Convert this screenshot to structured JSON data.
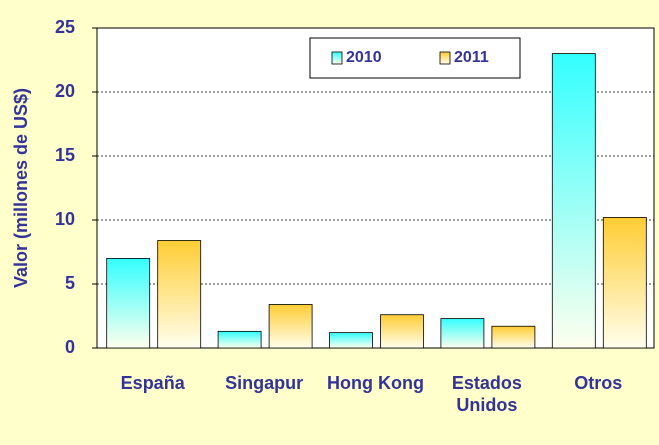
{
  "chart_data": {
    "type": "bar",
    "y_label": "Valor (millones de US$)",
    "categories": [
      "España",
      "Singapur",
      "Hong Kong",
      "Estados Unidos",
      "Otros"
    ],
    "series": [
      {
        "name": "2010",
        "color": "#33ffff",
        "values": [
          7.0,
          1.3,
          1.2,
          2.3,
          23.0
        ]
      },
      {
        "name": "2011",
        "color": "#ffcc33",
        "values": [
          8.4,
          3.4,
          2.6,
          1.7,
          10.2
        ]
      }
    ],
    "ylim": [
      0,
      25
    ],
    "yticks": [
      0,
      5,
      10,
      15,
      20,
      25
    ],
    "grid": true,
    "legend": "top"
  }
}
